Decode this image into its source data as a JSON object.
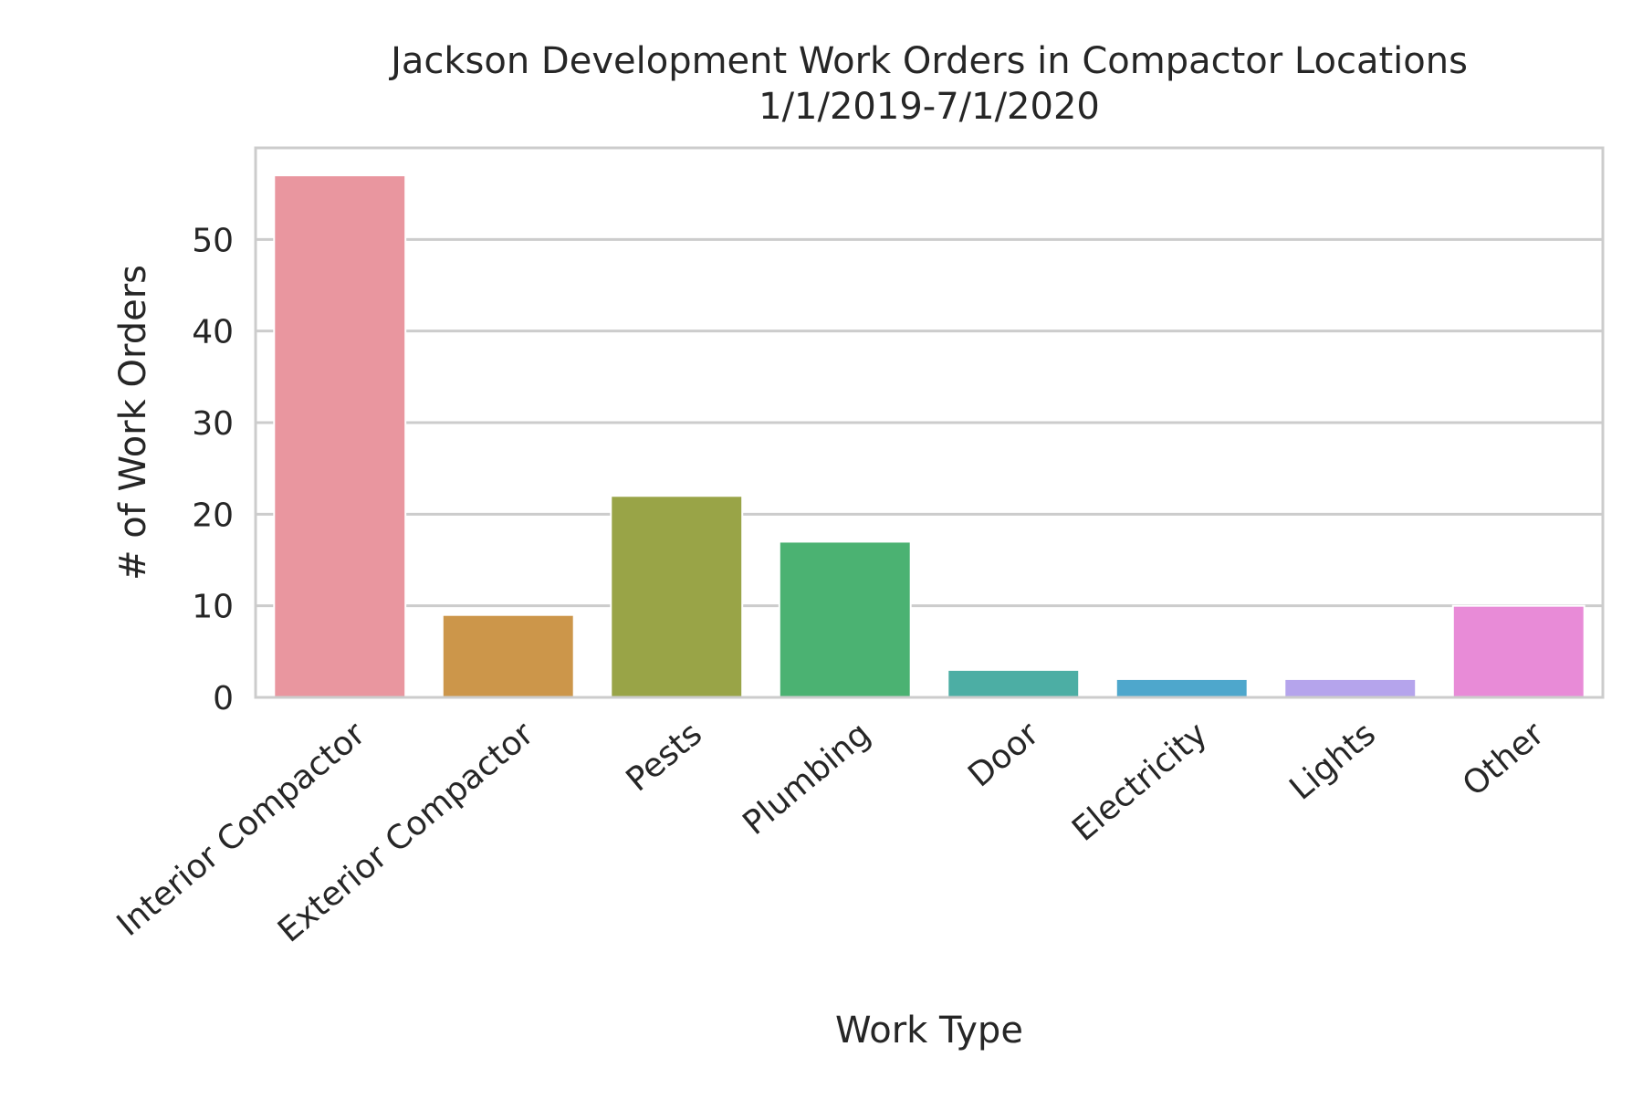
{
  "chart_data": {
    "type": "bar",
    "title": "Jackson Development Work Orders in Compactor Locations",
    "subtitle": "1/1/2019-7/1/2020",
    "xlabel": "Work Type",
    "ylabel": "# of Work Orders",
    "categories": [
      "Interior Compactor",
      "Exterior Compactor",
      "Pests",
      "Plumbing",
      "Door",
      "Electricity",
      "Lights",
      "Other"
    ],
    "values": [
      57,
      9,
      22,
      17,
      3,
      2,
      2,
      10
    ],
    "colors": [
      "#e9969f",
      "#cc964a",
      "#99a447",
      "#4bb272",
      "#4caea4",
      "#4ea7cc",
      "#b5a4ec",
      "#e88bd7"
    ],
    "ylim": [
      0,
      60
    ],
    "yticks": [
      0,
      10,
      20,
      30,
      40,
      50
    ],
    "grid": "y",
    "legend": "none"
  }
}
